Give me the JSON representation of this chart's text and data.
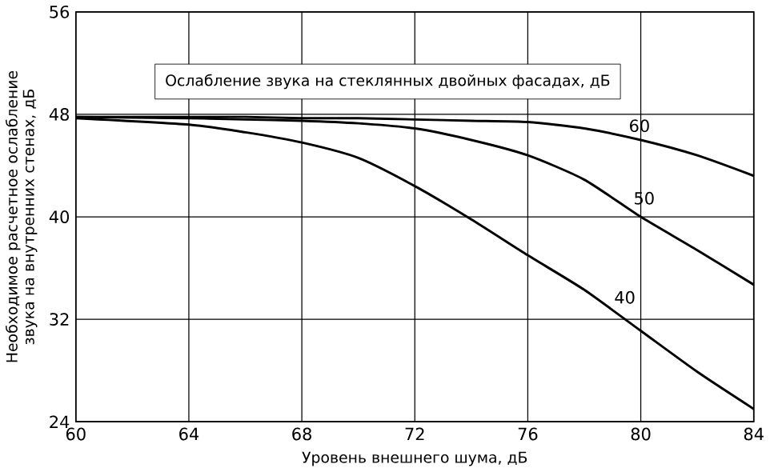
{
  "chart_data": {
    "type": "line",
    "title": "Ослабление звука на стеклянных двойных фасадах, дБ",
    "xlabel": "Уровень внешнего шума, дБ",
    "ylabel": "Необходимое расчетное ослабление звука на внутренних стенах, дБ",
    "x": [
      60,
      64,
      66,
      68,
      70,
      72,
      74,
      76,
      78,
      80,
      82,
      84
    ],
    "series": [
      {
        "name": "40",
        "color": "#000000",
        "values": [
          47.7,
          47.2,
          46.6,
          45.8,
          44.6,
          42.4,
          39.8,
          37.0,
          34.3,
          31.1,
          27.9,
          25.0
        ]
      },
      {
        "name": "50",
        "color": "#000000",
        "values": [
          47.8,
          47.7,
          47.6,
          47.5,
          47.3,
          46.9,
          46.0,
          44.8,
          42.9,
          40.0,
          37.4,
          34.7
        ]
      },
      {
        "name": "60",
        "color": "#000000",
        "values": [
          47.8,
          47.8,
          47.8,
          47.7,
          47.7,
          47.6,
          47.5,
          47.4,
          46.9,
          46.0,
          44.8,
          43.2
        ]
      }
    ],
    "xlim": [
      60,
      84
    ],
    "xticks": [
      60,
      64,
      68,
      72,
      76,
      80,
      84
    ],
    "ylim": [
      24,
      56
    ],
    "yticks": [
      24,
      32,
      40,
      48,
      56
    ],
    "grid": true,
    "legend": false,
    "marker": "none",
    "line_style": "solid"
  }
}
